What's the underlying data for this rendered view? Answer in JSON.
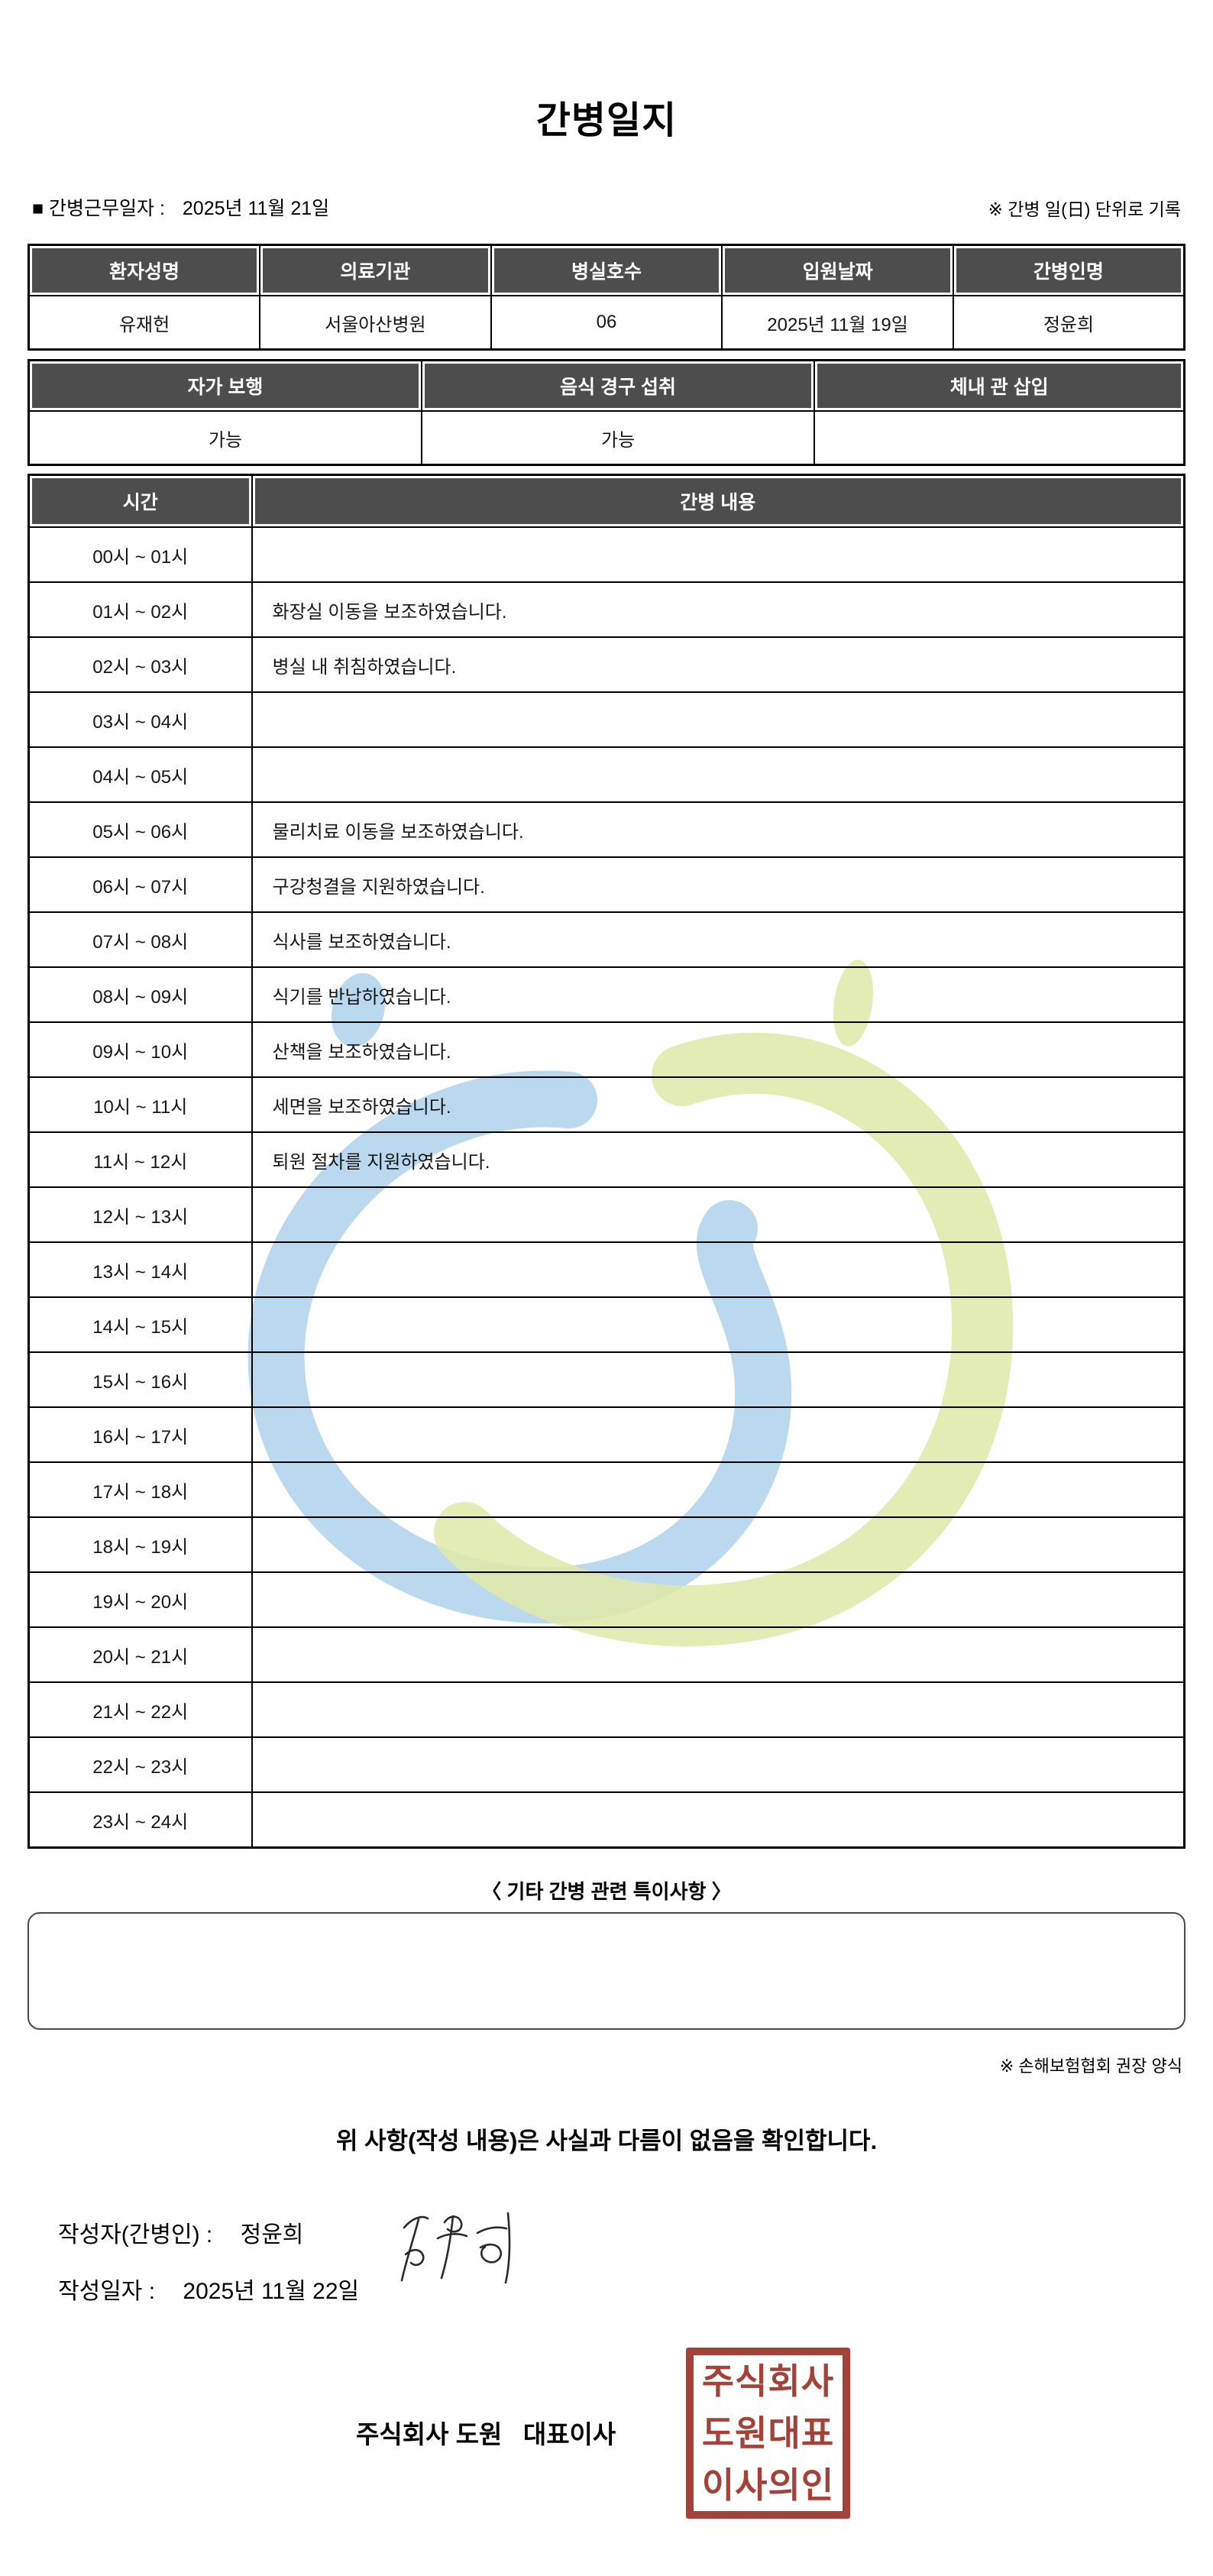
{
  "title": "간병일지",
  "meta": {
    "work_date_label": "■ 간병근무일자 :",
    "work_date": "2025년 11월 21일",
    "unit_note": "※ 간병 일(日) 단위로 기록"
  },
  "patient_table": {
    "headers": [
      "환자성명",
      "의료기관",
      "병실호수",
      "입원날짜",
      "간병인명"
    ],
    "values": [
      "유재헌",
      "서울아산병원",
      "06",
      "2025년 11월 19일",
      "정윤희"
    ]
  },
  "status_table": {
    "headers": [
      "자가 보행",
      "음식 경구 섭취",
      "체내 관 삽입"
    ],
    "values": [
      "가능",
      "가능",
      ""
    ]
  },
  "care_log": {
    "time_header": "시간",
    "content_header": "간병 내용",
    "rows": [
      {
        "time": "00시 ~ 01시",
        "content": ""
      },
      {
        "time": "01시 ~ 02시",
        "content": "화장실 이동을 보조하였습니다."
      },
      {
        "time": "02시 ~ 03시",
        "content": "병실 내 취침하였습니다."
      },
      {
        "time": "03시 ~ 04시",
        "content": ""
      },
      {
        "time": "04시 ~ 05시",
        "content": ""
      },
      {
        "time": "05시 ~ 06시",
        "content": "물리치료 이동을 보조하였습니다."
      },
      {
        "time": "06시 ~ 07시",
        "content": "구강청결을 지원하였습니다."
      },
      {
        "time": "07시 ~ 08시",
        "content": "식사를 보조하였습니다."
      },
      {
        "time": "08시 ~ 09시",
        "content": "식기를 반납하였습니다."
      },
      {
        "time": "09시 ~ 10시",
        "content": "산책을 보조하였습니다."
      },
      {
        "time": "10시 ~ 11시",
        "content": "세면을 보조하였습니다."
      },
      {
        "time": "11시 ~ 12시",
        "content": "퇴원 절차를 지원하였습니다."
      },
      {
        "time": "12시 ~ 13시",
        "content": ""
      },
      {
        "time": "13시 ~ 14시",
        "content": ""
      },
      {
        "time": "14시 ~ 15시",
        "content": ""
      },
      {
        "time": "15시 ~ 16시",
        "content": ""
      },
      {
        "time": "16시 ~ 17시",
        "content": ""
      },
      {
        "time": "17시 ~ 18시",
        "content": ""
      },
      {
        "time": "18시 ~ 19시",
        "content": ""
      },
      {
        "time": "19시 ~ 20시",
        "content": ""
      },
      {
        "time": "20시 ~ 21시",
        "content": ""
      },
      {
        "time": "21시 ~ 22시",
        "content": ""
      },
      {
        "time": "22시 ~ 23시",
        "content": ""
      },
      {
        "time": "23시 ~ 24시",
        "content": ""
      }
    ]
  },
  "notes": {
    "heading": "〈 기타 간병 관련 특이사항 〉",
    "content": "",
    "form_note": "※ 손해보험협회 권장 양식"
  },
  "confirmation": "위 사항(작성 내용)은 사실과 다름이 없음을 확인합니다.",
  "signature_block": {
    "writer_label": "작성자(간병인) :",
    "writer_name": "정윤희",
    "date_label": "작성일자 :",
    "date_value": "2025년 11월 22일",
    "company_line": "주식회사 도원   대표이사",
    "stamp_lines": [
      "주식회사",
      "도원대표",
      "이사의인"
    ]
  },
  "colors": {
    "header_bg": "#4d4d4d",
    "stamp_red": "#9e382f",
    "watermark_blue": "#a9cfeb",
    "watermark_green": "#dfe9a8"
  }
}
